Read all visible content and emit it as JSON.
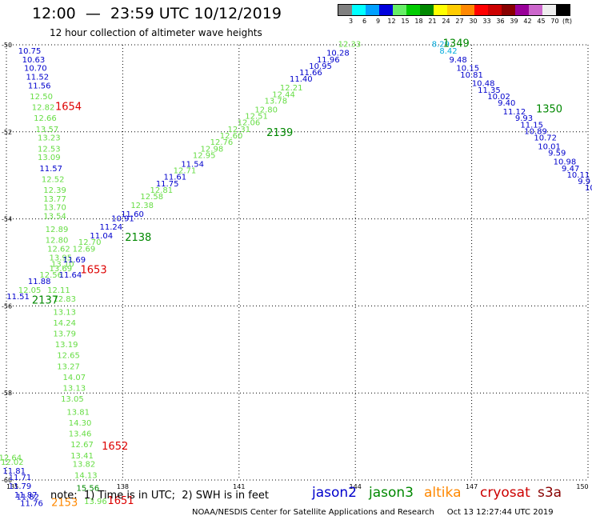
{
  "header": {
    "title": "12:00  —  23:59 UTC 10/12/2019",
    "subtitle": "12 hour collection of altimeter wave heights"
  },
  "scale": {
    "unit": "(ft)",
    "items": [
      {
        "label": "3",
        "color": "#808080"
      },
      {
        "label": "6",
        "color": "#00ffff"
      },
      {
        "label": "9",
        "color": "#00a0ff"
      },
      {
        "label": "12",
        "color": "#0000dd"
      },
      {
        "label": "15",
        "color": "#66ee66"
      },
      {
        "label": "18",
        "color": "#00cc00"
      },
      {
        "label": "21",
        "color": "#008800"
      },
      {
        "label": "24",
        "color": "#ffff00"
      },
      {
        "label": "27",
        "color": "#ffcc00"
      },
      {
        "label": "30",
        "color": "#ff8800"
      },
      {
        "label": "33",
        "color": "#ff0000"
      },
      {
        "label": "36",
        "color": "#cc0000"
      },
      {
        "label": "39",
        "color": "#880000"
      },
      {
        "label": "42",
        "color": "#990099"
      },
      {
        "label": "45",
        "color": "#cc66cc"
      },
      {
        "label": "70",
        "color": "#eeeeee"
      },
      {
        "label": "",
        "color": "#000000"
      }
    ]
  },
  "axes": {
    "lat_labels": [
      "-50",
      "-52",
      "-54",
      "-56",
      "-58",
      "-60"
    ],
    "lat_values": [
      -50,
      -52,
      -54,
      -56,
      -58,
      -60
    ],
    "lon_labels": [
      "135",
      "138",
      "141",
      "144",
      "147",
      "150"
    ],
    "lon_values": [
      135,
      138,
      141,
      144,
      147,
      150
    ]
  },
  "colors": {
    "blue": "#0000cc",
    "light_green": "#66dd44",
    "dark_green": "#008800",
    "red": "#dd0000",
    "cyan": "#00aadd",
    "orange": "#ff8800"
  },
  "tracks": [
    {
      "text": "10.75",
      "lon": 135.6,
      "lat": -50.2,
      "c": "blue"
    },
    {
      "text": "10.63",
      "lon": 135.7,
      "lat": -50.4,
      "c": "blue"
    },
    {
      "text": "10.70",
      "lon": 135.75,
      "lat": -50.6,
      "c": "blue"
    },
    {
      "text": "11.52",
      "lon": 135.8,
      "lat": -50.8,
      "c": "blue"
    },
    {
      "text": "11.56",
      "lon": 135.85,
      "lat": -51.0,
      "c": "blue"
    },
    {
      "text": "12.50",
      "lon": 135.9,
      "lat": -51.25,
      "c": "light_green"
    },
    {
      "text": "12.82",
      "lon": 135.95,
      "lat": -51.5,
      "c": "light_green"
    },
    {
      "text": "12.66",
      "lon": 136.0,
      "lat": -51.75,
      "c": "light_green"
    },
    {
      "text": "13.57",
      "lon": 136.05,
      "lat": -52.0,
      "c": "light_green"
    },
    {
      "text": "13.23",
      "lon": 136.1,
      "lat": -52.2,
      "c": "light_green"
    },
    {
      "text": "12.53",
      "lon": 136.1,
      "lat": -52.45,
      "c": "light_green"
    },
    {
      "text": "13.09",
      "lon": 136.1,
      "lat": -52.65,
      "c": "light_green"
    },
    {
      "text": "11.57",
      "lon": 136.15,
      "lat": -52.9,
      "c": "blue"
    },
    {
      "text": "12.52",
      "lon": 136.2,
      "lat": -53.15,
      "c": "light_green"
    },
    {
      "text": "12.39",
      "lon": 136.25,
      "lat": -53.4,
      "c": "light_green"
    },
    {
      "text": "13.77",
      "lon": 136.25,
      "lat": -53.6,
      "c": "light_green"
    },
    {
      "text": "13.70",
      "lon": 136.25,
      "lat": -53.8,
      "c": "light_green"
    },
    {
      "text": "13.54",
      "lon": 136.25,
      "lat": -54.0,
      "c": "light_green"
    },
    {
      "text": "12.89",
      "lon": 136.3,
      "lat": -54.3,
      "c": "light_green"
    },
    {
      "text": "12.80",
      "lon": 136.3,
      "lat": -54.55,
      "c": "light_green"
    },
    {
      "text": "12.62",
      "lon": 136.35,
      "lat": -54.75,
      "c": "light_green"
    },
    {
      "text": "13.95",
      "lon": 136.4,
      "lat": -54.95,
      "c": "light_green"
    },
    {
      "text": "13.10",
      "lon": 136.45,
      "lat": -55.1,
      "c": "light_green"
    },
    {
      "text": "13.69",
      "lon": 136.4,
      "lat": -55.2,
      "c": "light_green"
    },
    {
      "text": "12.56",
      "lon": 136.15,
      "lat": -55.35,
      "c": "light_green"
    },
    {
      "text": "11.64",
      "lon": 136.65,
      "lat": -55.35,
      "c": "blue"
    },
    {
      "text": "11.88",
      "lon": 135.85,
      "lat": -55.5,
      "c": "blue"
    },
    {
      "text": "12.05",
      "lon": 135.6,
      "lat": -55.7,
      "c": "light_green"
    },
    {
      "text": "12.11",
      "lon": 136.35,
      "lat": -55.7,
      "c": "light_green"
    },
    {
      "text": "11.51",
      "lon": 135.3,
      "lat": -55.85,
      "c": "blue"
    },
    {
      "text": "12.83",
      "lon": 136.5,
      "lat": -55.9,
      "c": "light_green"
    },
    {
      "text": "13.13",
      "lon": 136.5,
      "lat": -56.2,
      "c": "light_green"
    },
    {
      "text": "14.24",
      "lon": 136.5,
      "lat": -56.45,
      "c": "light_green"
    },
    {
      "text": "13.79",
      "lon": 136.5,
      "lat": -56.7,
      "c": "light_green"
    },
    {
      "text": "13.19",
      "lon": 136.55,
      "lat": -56.95,
      "c": "light_green"
    },
    {
      "text": "12.65",
      "lon": 136.6,
      "lat": -57.2,
      "c": "light_green"
    },
    {
      "text": "13.27",
      "lon": 136.6,
      "lat": -57.45,
      "c": "light_green"
    },
    {
      "text": "14.07",
      "lon": 136.75,
      "lat": -57.7,
      "c": "light_green"
    },
    {
      "text": "13.13",
      "lon": 136.75,
      "lat": -57.95,
      "c": "light_green"
    },
    {
      "text": "13.05",
      "lon": 136.7,
      "lat": -58.2,
      "c": "light_green"
    },
    {
      "text": "13.81",
      "lon": 136.85,
      "lat": -58.5,
      "c": "light_green"
    },
    {
      "text": "14.30",
      "lon": 136.9,
      "lat": -58.75,
      "c": "light_green"
    },
    {
      "text": "13.46",
      "lon": 136.9,
      "lat": -59.0,
      "c": "light_green"
    },
    {
      "text": "12.67",
      "lon": 136.95,
      "lat": -59.25,
      "c": "light_green"
    },
    {
      "text": "13.41",
      "lon": 136.95,
      "lat": -59.5,
      "c": "light_green"
    },
    {
      "text": "13.82",
      "lon": 137.0,
      "lat": -59.7,
      "c": "light_green"
    },
    {
      "text": "14.13",
      "lon": 137.05,
      "lat": -59.95,
      "c": "light_green"
    },
    {
      "text": "15.56",
      "lon": 137.1,
      "lat": -60.25,
      "c": "dark_green"
    },
    {
      "text": "13.96",
      "lon": 137.3,
      "lat": -60.55,
      "c": "light_green"
    },
    {
      "text": "12.64",
      "lon": 135.1,
      "lat": -59.55,
      "c": "light_green"
    },
    {
      "text": "12.02",
      "lon": 135.15,
      "lat": -59.65,
      "c": "light_green"
    },
    {
      "text": "11.81",
      "lon": 135.2,
      "lat": -59.85,
      "c": "blue"
    },
    {
      "text": "11.71",
      "lon": 135.35,
      "lat": -60.0,
      "c": "blue"
    },
    {
      "text": "11.79",
      "lon": 135.35,
      "lat": -60.2,
      "c": "blue"
    },
    {
      "text": "11.87",
      "lon": 135.5,
      "lat": -60.4,
      "c": "blue"
    },
    {
      "text": "11.82",
      "lon": 135.55,
      "lat": -60.45,
      "c": "blue"
    },
    {
      "text": "11.76",
      "lon": 135.65,
      "lat": -60.6,
      "c": "blue"
    },
    {
      "text": "11.69",
      "lon": 136.75,
      "lat": -55.0,
      "c": "blue"
    },
    {
      "text": "12.69",
      "lon": 137.0,
      "lat": -54.75,
      "c": "light_green"
    },
    {
      "text": "12.70",
      "lon": 137.15,
      "lat": -54.6,
      "c": "light_green"
    },
    {
      "text": "11.04",
      "lon": 137.45,
      "lat": -54.45,
      "c": "blue"
    },
    {
      "text": "11.24",
      "lon": 137.7,
      "lat": -54.25,
      "c": "blue"
    },
    {
      "text": "10.91",
      "lon": 138.0,
      "lat": -54.05,
      "c": "blue"
    },
    {
      "text": "11.60",
      "lon": 138.25,
      "lat": -53.95,
      "c": "blue"
    },
    {
      "text": "12.38",
      "lon": 138.5,
      "lat": -53.75,
      "c": "light_green"
    },
    {
      "text": "12.58",
      "lon": 138.75,
      "lat": -53.55,
      "c": "light_green"
    },
    {
      "text": "12.81",
      "lon": 139.0,
      "lat": -53.4,
      "c": "light_green"
    },
    {
      "text": "11.75",
      "lon": 139.15,
      "lat": -53.25,
      "c": "blue"
    },
    {
      "text": "11.61",
      "lon": 139.35,
      "lat": -53.1,
      "c": "blue"
    },
    {
      "text": "12.71",
      "lon": 139.6,
      "lat": -52.95,
      "c": "light_green"
    },
    {
      "text": "11.54",
      "lon": 139.8,
      "lat": -52.8,
      "c": "blue"
    },
    {
      "text": "12.95",
      "lon": 140.1,
      "lat": -52.6,
      "c": "light_green"
    },
    {
      "text": "12.98",
      "lon": 140.3,
      "lat": -52.45,
      "c": "light_green"
    },
    {
      "text": "12.76",
      "lon": 140.55,
      "lat": -52.3,
      "c": "light_green"
    },
    {
      "text": "12.60",
      "lon": 140.8,
      "lat": -52.15,
      "c": "light_green"
    },
    {
      "text": "12.31",
      "lon": 141.0,
      "lat": -52.0,
      "c": "light_green"
    },
    {
      "text": "12.06",
      "lon": 141.25,
      "lat": -51.85,
      "c": "light_green"
    },
    {
      "text": "12.51",
      "lon": 141.45,
      "lat": -51.7,
      "c": "light_green"
    },
    {
      "text": "12.80",
      "lon": 141.7,
      "lat": -51.55,
      "c": "light_green"
    },
    {
      "text": "13.78",
      "lon": 141.95,
      "lat": -51.35,
      "c": "light_green"
    },
    {
      "text": "12.44",
      "lon": 142.15,
      "lat": -51.2,
      "c": "light_green"
    },
    {
      "text": "12.21",
      "lon": 142.35,
      "lat": -51.05,
      "c": "light_green"
    },
    {
      "text": "11.40",
      "lon": 142.6,
      "lat": -50.85,
      "c": "blue"
    },
    {
      "text": "11.66",
      "lon": 142.85,
      "lat": -50.7,
      "c": "blue"
    },
    {
      "text": "10.95",
      "lon": 143.1,
      "lat": -50.55,
      "c": "blue"
    },
    {
      "text": "11.96",
      "lon": 143.3,
      "lat": -50.4,
      "c": "blue"
    },
    {
      "text": "10.28",
      "lon": 143.55,
      "lat": -50.25,
      "c": "blue"
    },
    {
      "text": "12.33",
      "lon": 143.85,
      "lat": -50.05,
      "c": "light_green"
    },
    {
      "text": "8.29",
      "lon": 146.2,
      "lat": -50.05,
      "c": "cyan"
    },
    {
      "text": "8.42",
      "lon": 146.4,
      "lat": -50.2,
      "c": "cyan"
    },
    {
      "text": "9.48",
      "lon": 146.65,
      "lat": -50.4,
      "c": "blue"
    },
    {
      "text": "10.15",
      "lon": 146.9,
      "lat": -50.6,
      "c": "blue"
    },
    {
      "text": "10.81",
      "lon": 147.0,
      "lat": -50.75,
      "c": "blue"
    },
    {
      "text": "10.48",
      "lon": 147.3,
      "lat": -50.95,
      "c": "blue"
    },
    {
      "text": "11.35",
      "lon": 147.45,
      "lat": -51.1,
      "c": "blue"
    },
    {
      "text": "10.02",
      "lon": 147.7,
      "lat": -51.25,
      "c": "blue"
    },
    {
      "text": "9.40",
      "lon": 147.9,
      "lat": -51.4,
      "c": "blue"
    },
    {
      "text": "11.12",
      "lon": 148.1,
      "lat": -51.6,
      "c": "blue"
    },
    {
      "text": "9.93",
      "lon": 148.35,
      "lat": -51.75,
      "c": "blue"
    },
    {
      "text": "11.15",
      "lon": 148.55,
      "lat": -51.9,
      "c": "blue"
    },
    {
      "text": "10.89",
      "lon": 148.65,
      "lat": -52.05,
      "c": "blue"
    },
    {
      "text": "10.72",
      "lon": 148.9,
      "lat": -52.2,
      "c": "blue"
    },
    {
      "text": "10.01",
      "lon": 149.0,
      "lat": -52.4,
      "c": "blue"
    },
    {
      "text": "9.59",
      "lon": 149.2,
      "lat": -52.55,
      "c": "blue"
    },
    {
      "text": "10.98",
      "lon": 149.4,
      "lat": -52.75,
      "c": "blue"
    },
    {
      "text": "9.47",
      "lon": 149.55,
      "lat": -52.9,
      "c": "blue"
    },
    {
      "text": "10.11",
      "lon": 149.75,
      "lat": -53.05,
      "c": "blue"
    },
    {
      "text": "9.9",
      "lon": 149.9,
      "lat": -53.2,
      "c": "blue"
    },
    {
      "text": "10",
      "lon": 150.05,
      "lat": -53.35,
      "c": "blue"
    }
  ],
  "time_labels": [
    {
      "text": "1654",
      "lon": 136.6,
      "lat": -51.5,
      "c": "red"
    },
    {
      "text": "2139",
      "lon": 142.05,
      "lat": -52.1,
      "c": "dark_green"
    },
    {
      "text": "1349",
      "lon": 146.6,
      "lat": -50.05,
      "c": "dark_green"
    },
    {
      "text": "1350",
      "lon": 149.0,
      "lat": -51.55,
      "c": "dark_green"
    },
    {
      "text": "2138",
      "lon": 138.4,
      "lat": -54.5,
      "c": "dark_green"
    },
    {
      "text": "1653",
      "lon": 137.25,
      "lat": -55.25,
      "c": "red"
    },
    {
      "text": "2137",
      "lon": 136.0,
      "lat": -55.95,
      "c": "dark_green"
    },
    {
      "text": "1652",
      "lon": 137.8,
      "lat": -59.3,
      "c": "red"
    },
    {
      "text": "2153",
      "lon": 136.5,
      "lat": -60.6,
      "c": "orange"
    },
    {
      "text": "1651",
      "lon": 137.95,
      "lat": -60.55,
      "c": "red"
    }
  ],
  "footer": {
    "note": "note:  1) Time is in UTC;  2) SWH is in feet",
    "credit": "NOAA/NESDIS Center for Satellite Applications and Research     Oct 13 12:27:44 UTC 2019",
    "legend": [
      {
        "label": "jason2",
        "color": "#0000cc"
      },
      {
        "label": "jason3",
        "color": "#008800"
      },
      {
        "label": "altika",
        "color": "#ff8800"
      },
      {
        "label": "cryosat",
        "color": "#cc0000"
      },
      {
        "label": "s3a",
        "color": "#880000"
      }
    ]
  }
}
